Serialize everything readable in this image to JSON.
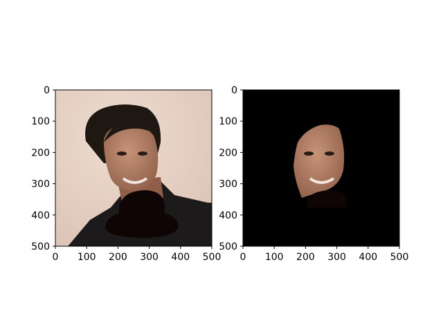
{
  "chart_data": [
    {
      "type": "image",
      "title": "",
      "content": "portrait-photo",
      "xlim": [
        0,
        500
      ],
      "ylim": [
        500,
        0
      ],
      "xticks": [
        "0",
        "100",
        "200",
        "300",
        "400",
        "500"
      ],
      "yticks": [
        "0",
        "100",
        "200",
        "300",
        "400",
        "500"
      ],
      "colors": {
        "background": "#e6d2c6",
        "hair": "#1f1812",
        "skin": "#b8866c",
        "clothing": "#1c1a1a",
        "occluder": "#0e0504"
      }
    },
    {
      "type": "image",
      "title": "",
      "content": "segmented-face-on-black",
      "xlim": [
        0,
        500
      ],
      "ylim": [
        500,
        0
      ],
      "xticks": [
        "0",
        "100",
        "200",
        "300",
        "400",
        "500"
      ],
      "yticks": [
        "0",
        "100",
        "200",
        "300",
        "400",
        "500"
      ],
      "colors": {
        "background": "#000000",
        "skin": "#b8866c",
        "occluder": "#0e0504"
      }
    }
  ]
}
